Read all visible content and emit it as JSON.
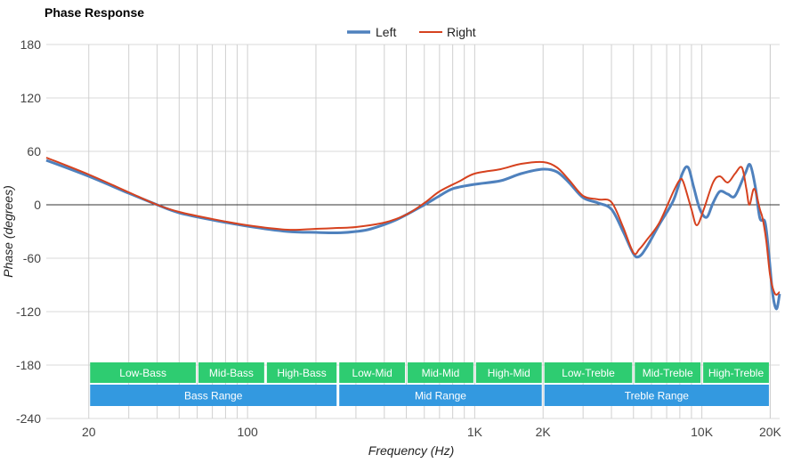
{
  "chart_data": {
    "type": "line",
    "title": "Phase Response",
    "xlabel": "Frequency (Hz)",
    "ylabel": "Phase (degrees)",
    "xscale": "log",
    "xlim": [
      13,
      22000
    ],
    "ylim": [
      -240,
      180
    ],
    "yticks": [
      180,
      120,
      60,
      0,
      -60,
      -120,
      -180,
      -240
    ],
    "xticks": [
      {
        "value": 20,
        "label": "20"
      },
      {
        "value": 100,
        "label": "100"
      },
      {
        "value": 1000,
        "label": "1K"
      },
      {
        "value": 2000,
        "label": "2K"
      },
      {
        "value": 10000,
        "label": "10K"
      },
      {
        "value": 20000,
        "label": "20K"
      }
    ],
    "grid": true,
    "legend": "top-center",
    "series": [
      {
        "name": "Left",
        "color": "#4f81bd",
        "points": [
          [
            13,
            50
          ],
          [
            20,
            32
          ],
          [
            30,
            13
          ],
          [
            40,
            0
          ],
          [
            50,
            -9
          ],
          [
            70,
            -17
          ],
          [
            100,
            -24
          ],
          [
            150,
            -30
          ],
          [
            200,
            -31
          ],
          [
            250,
            -31.5
          ],
          [
            300,
            -30
          ],
          [
            350,
            -27
          ],
          [
            450,
            -17
          ],
          [
            600,
            0
          ],
          [
            700,
            10
          ],
          [
            800,
            18
          ],
          [
            1000,
            23
          ],
          [
            1300,
            27
          ],
          [
            1600,
            35
          ],
          [
            2000,
            40
          ],
          [
            2300,
            37
          ],
          [
            2600,
            25
          ],
          [
            3000,
            8
          ],
          [
            3500,
            2
          ],
          [
            4000,
            -5
          ],
          [
            4500,
            -30
          ],
          [
            5000,
            -55
          ],
          [
            5300,
            -58
          ],
          [
            5700,
            -48
          ],
          [
            6500,
            -22
          ],
          [
            7500,
            5
          ],
          [
            8200,
            35
          ],
          [
            8700,
            42
          ],
          [
            9200,
            20
          ],
          [
            9800,
            -5
          ],
          [
            10500,
            -14
          ],
          [
            11200,
            2
          ],
          [
            12000,
            15
          ],
          [
            13000,
            12
          ],
          [
            14000,
            10
          ],
          [
            15500,
            35
          ],
          [
            16300,
            45
          ],
          [
            17200,
            20
          ],
          [
            18000,
            -15
          ],
          [
            19000,
            -20
          ],
          [
            19800,
            -60
          ],
          [
            20500,
            -100
          ],
          [
            21300,
            -117
          ],
          [
            22000,
            -100
          ]
        ]
      },
      {
        "name": "Right",
        "color": "#d6421f",
        "points": [
          [
            13,
            53
          ],
          [
            20,
            34
          ],
          [
            30,
            14
          ],
          [
            40,
            0
          ],
          [
            50,
            -8
          ],
          [
            70,
            -16
          ],
          [
            100,
            -23
          ],
          [
            150,
            -28
          ],
          [
            200,
            -27
          ],
          [
            250,
            -26
          ],
          [
            300,
            -25
          ],
          [
            400,
            -20
          ],
          [
            500,
            -11
          ],
          [
            600,
            2
          ],
          [
            700,
            15
          ],
          [
            850,
            26
          ],
          [
            1000,
            35
          ],
          [
            1300,
            40
          ],
          [
            1600,
            46
          ],
          [
            2000,
            48
          ],
          [
            2300,
            42
          ],
          [
            2600,
            28
          ],
          [
            3000,
            10
          ],
          [
            3500,
            6
          ],
          [
            4000,
            3
          ],
          [
            4500,
            -25
          ],
          [
            5000,
            -54
          ],
          [
            5300,
            -50
          ],
          [
            5700,
            -40
          ],
          [
            6500,
            -20
          ],
          [
            7500,
            15
          ],
          [
            8000,
            28
          ],
          [
            8300,
            25
          ],
          [
            9000,
            -5
          ],
          [
            9500,
            -23
          ],
          [
            10200,
            -5
          ],
          [
            11200,
            25
          ],
          [
            12000,
            32
          ],
          [
            13000,
            25
          ],
          [
            14000,
            35
          ],
          [
            15000,
            42
          ],
          [
            15700,
            18
          ],
          [
            16200,
            0
          ],
          [
            17000,
            18
          ],
          [
            18000,
            -5
          ],
          [
            18500,
            -15
          ],
          [
            19200,
            -40
          ],
          [
            20000,
            -80
          ],
          [
            21000,
            -100
          ],
          [
            22000,
            -98
          ]
        ]
      }
    ],
    "ranges": [
      {
        "label": "Low-Bass",
        "from": 20,
        "to": 60,
        "color": "#2ecc71",
        "row": 1
      },
      {
        "label": "Mid-Bass",
        "from": 60,
        "to": 120,
        "color": "#2ecc71",
        "row": 1
      },
      {
        "label": "High-Bass",
        "from": 120,
        "to": 250,
        "color": "#2ecc71",
        "row": 1
      },
      {
        "label": "Low-Mid",
        "from": 250,
        "to": 500,
        "color": "#2ecc71",
        "row": 1
      },
      {
        "label": "Mid-Mid",
        "from": 500,
        "to": 1000,
        "color": "#2ecc71",
        "row": 1
      },
      {
        "label": "High-Mid",
        "from": 1000,
        "to": 2000,
        "color": "#2ecc71",
        "row": 1
      },
      {
        "label": "Low-Treble",
        "from": 2000,
        "to": 5000,
        "color": "#2ecc71",
        "row": 1
      },
      {
        "label": "Mid-Treble",
        "from": 5000,
        "to": 10000,
        "color": "#2ecc71",
        "row": 1
      },
      {
        "label": "High-Treble",
        "from": 10000,
        "to": 20000,
        "color": "#2ecc71",
        "row": 1
      },
      {
        "label": "Bass Range",
        "from": 20,
        "to": 250,
        "color": "#3399e0",
        "row": 2
      },
      {
        "label": "Mid Range",
        "from": 250,
        "to": 2000,
        "color": "#3399e0",
        "row": 2
      },
      {
        "label": "Treble Range",
        "from": 2000,
        "to": 20000,
        "color": "#3399e0",
        "row": 2
      }
    ]
  }
}
